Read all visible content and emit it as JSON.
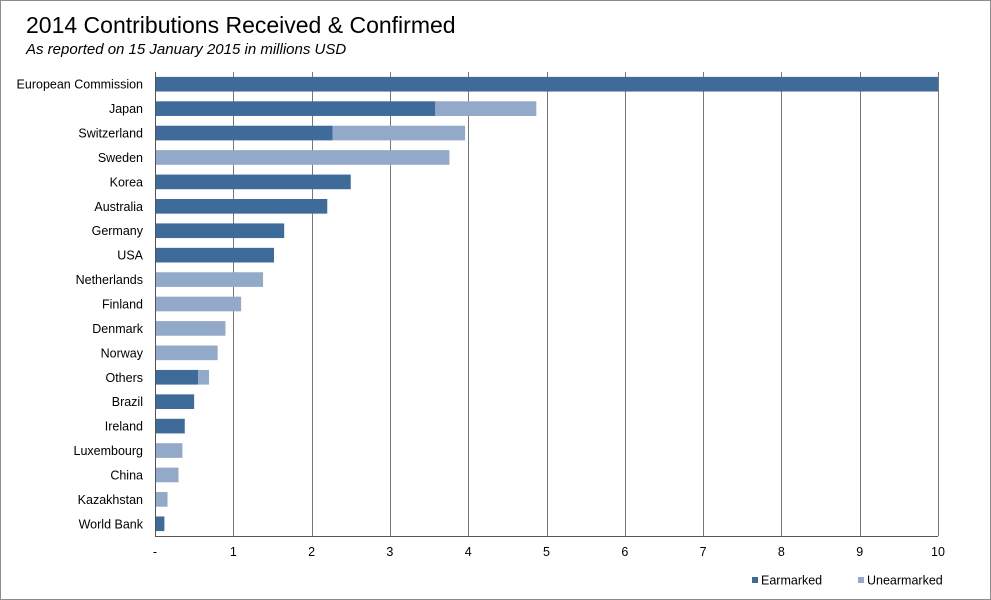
{
  "header": {
    "title": "2014 Contributions Received & Confirmed",
    "subtitle": "As reported on 15 January 2015 in millions USD"
  },
  "colors": {
    "earmarked": "#3f6b9b",
    "unearmarked": "#93a9c9",
    "grid": "#777777"
  },
  "chart_data": {
    "type": "bar",
    "orientation": "horizontal",
    "stacked": true,
    "title": "2014 Contributions Received & Confirmed",
    "subtitle": "As reported on 15 January 2015 in millions USD",
    "categories": [
      "European Commission",
      "Japan",
      "Switzerland",
      "Sweden",
      "Korea",
      "Australia",
      "Germany",
      "USA",
      "Netherlands",
      "Finland",
      "Denmark",
      "Norway",
      "Others",
      "Brazil",
      "Ireland",
      "Luxembourg",
      "China",
      "Kazakhstan",
      "World Bank"
    ],
    "series": [
      {
        "name": "Earmarked",
        "values": [
          10.0,
          3.58,
          2.27,
          0,
          2.5,
          2.2,
          1.65,
          1.52,
          0,
          0,
          0,
          0,
          0.55,
          0.5,
          0.38,
          0,
          0,
          0,
          0.12
        ]
      },
      {
        "name": "Unearmarked",
        "values": [
          0,
          1.29,
          1.69,
          3.76,
          0,
          0,
          0,
          0,
          1.38,
          1.1,
          0.9,
          0.8,
          0.14,
          0,
          0,
          0.35,
          0.3,
          0.16,
          0
        ]
      }
    ],
    "xlim": [
      0,
      10
    ],
    "x_ticks": [
      "-",
      "1",
      "2",
      "3",
      "4",
      "5",
      "6",
      "7",
      "8",
      "9",
      "10"
    ],
    "grid": "vertical",
    "legend_position": "bottom-right"
  }
}
